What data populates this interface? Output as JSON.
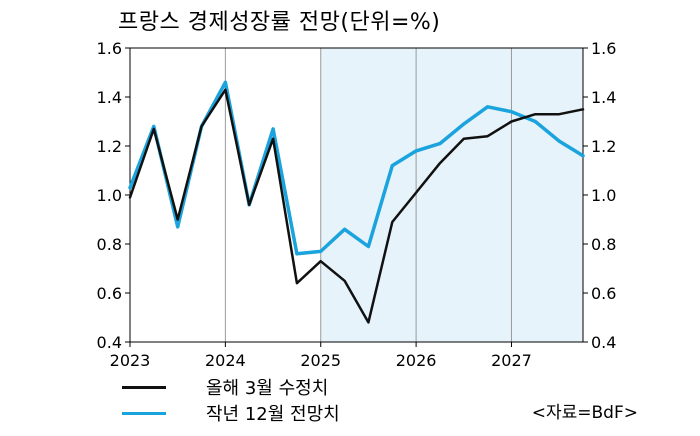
{
  "title": "프랑스 경제성장률 전망(단위=%)",
  "source": "<자료=BdF>",
  "colors": {
    "black_line": "#111111",
    "blue_line": "#1aa3dc",
    "forecast_shade": "#e6f3fb"
  },
  "chart_data": {
    "type": "line",
    "title": "프랑스 경제성장률 전망(단위=%)",
    "xlabel": "",
    "ylabel": "",
    "x": [
      2023.0,
      2023.25,
      2023.5,
      2023.75,
      2024.0,
      2024.25,
      2024.5,
      2024.75,
      2025.0,
      2025.25,
      2025.5,
      2025.75,
      2026.0,
      2026.25,
      2026.5,
      2026.75,
      2027.0,
      2027.25,
      2027.5,
      2027.75
    ],
    "xlim": [
      2023.0,
      2027.75
    ],
    "x_ticks": [
      2023,
      2024,
      2025,
      2026,
      2027
    ],
    "ylim": [
      0.4,
      1.6
    ],
    "y_ticks": [
      "0.4",
      "0.6",
      "0.8",
      "1.0",
      "1.2",
      "1.4",
      "1.6"
    ],
    "y_axes": "both",
    "grid": "vertical",
    "forecast_shade_from": 2025.0,
    "legend_position": "bottom-left",
    "series": [
      {
        "name": "올해 3월 수정치",
        "color": "#111111",
        "values": [
          0.99,
          1.27,
          0.9,
          1.28,
          1.43,
          0.96,
          1.23,
          0.64,
          0.73,
          0.65,
          0.48,
          0.89,
          1.01,
          1.13,
          1.23,
          1.24,
          1.3,
          1.33,
          1.33,
          1.35
        ]
      },
      {
        "name": "작년 12월 전망치",
        "color": "#1aa3dc",
        "values": [
          1.03,
          1.28,
          0.87,
          1.28,
          1.46,
          0.96,
          1.27,
          0.76,
          0.77,
          0.86,
          0.79,
          1.12,
          1.18,
          1.21,
          1.29,
          1.36,
          1.34,
          1.3,
          1.22,
          1.16
        ]
      }
    ]
  }
}
